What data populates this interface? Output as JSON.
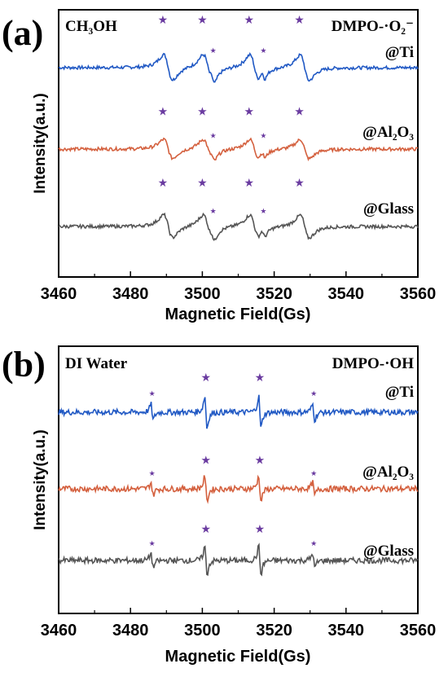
{
  "chart_data": [
    {
      "type": "line",
      "panel_label": "(a)",
      "solvent": "CH₃OH",
      "probe": "DMPO-·O₂⁻",
      "xlabel": "Magnetic Field(Gs)",
      "ylabel": "Intensity(a.u.)",
      "xlim": [
        3460,
        3560
      ],
      "x_ticks": [
        "3460",
        "3480",
        "3500",
        "3520",
        "3540",
        "3560"
      ],
      "grid": false,
      "series": [
        {
          "name": "@Ti",
          "color": "#2159c4",
          "amplitude": 1.0
        },
        {
          "name": "@Al₂O₃",
          "color": "#d4603e",
          "amplitude": 0.75
        },
        {
          "name": "@Glass",
          "color": "#555555",
          "amplitude": 0.9
        }
      ],
      "peaks_main": [
        3489,
        3500,
        3513,
        3527
      ],
      "peaks_minor": [
        3503,
        3517
      ],
      "main_marker": "★",
      "minor_marker": "★"
    },
    {
      "type": "line",
      "panel_label": "(b)",
      "solvent": "DI Water",
      "probe": "DMPO-·OH",
      "xlabel": "Magnetic Field(Gs)",
      "ylabel": "Intensity(a.u.)",
      "xlim": [
        3460,
        3560
      ],
      "x_ticks": [
        "3460",
        "3480",
        "3500",
        "3520",
        "3540",
        "3560"
      ],
      "grid": false,
      "series": [
        {
          "name": "@Ti",
          "color": "#2159c4",
          "amplitude": 1.0
        },
        {
          "name": "@Al₂O₃",
          "color": "#d4603e",
          "amplitude": 0.8
        },
        {
          "name": "@Glass",
          "color": "#555555",
          "amplitude": 0.9
        }
      ],
      "peaks": [
        3486,
        3501,
        3516,
        3531
      ],
      "peak_relative_intensity": [
        1,
        2,
        2,
        1
      ],
      "main_marker": "★",
      "minor_marker": "★"
    }
  ]
}
